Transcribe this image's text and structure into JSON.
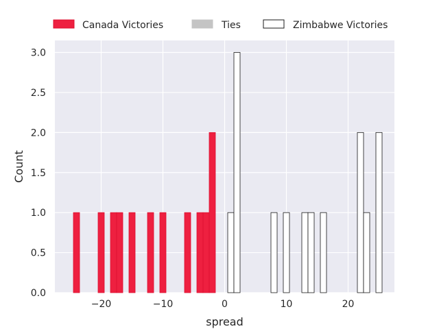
{
  "chart_data": {
    "type": "bar",
    "xlabel": "spread",
    "ylabel": "Count",
    "xlim": [
      -27.5,
      27.5
    ],
    "ylim": [
      0,
      3.15
    ],
    "bin_width": 1,
    "x_ticks": [
      -20,
      -10,
      0,
      10,
      20
    ],
    "x_tick_labels": [
      "−20",
      "−10",
      "0",
      "10",
      "20"
    ],
    "y_ticks": [
      0,
      0.5,
      1,
      1.5,
      2,
      2.5,
      3
    ],
    "y_tick_labels": [
      "0.0",
      "0.5",
      "1.0",
      "1.5",
      "2.0",
      "2.5",
      "3.0"
    ],
    "grid": true,
    "legend_position": "top",
    "series": [
      {
        "name": "Canada Victories",
        "fill": "#ee2040",
        "stroke": "#dd1030",
        "bins": [
          {
            "x": -24,
            "count": 1
          },
          {
            "x": -20,
            "count": 1
          },
          {
            "x": -18,
            "count": 1
          },
          {
            "x": -17,
            "count": 1
          },
          {
            "x": -15,
            "count": 1
          },
          {
            "x": -12,
            "count": 1
          },
          {
            "x": -10,
            "count": 1
          },
          {
            "x": -6,
            "count": 1
          },
          {
            "x": -4,
            "count": 1
          },
          {
            "x": -3,
            "count": 1
          },
          {
            "x": -2,
            "count": 2
          }
        ]
      },
      {
        "name": "Ties",
        "fill": "#c4c4c4",
        "stroke": "#c4c4c4",
        "bins": []
      },
      {
        "name": "Zimbabwe Victories",
        "fill": "#ffffff",
        "stroke": "#1a1a1a",
        "bins": [
          {
            "x": 1,
            "count": 1
          },
          {
            "x": 2,
            "count": 3
          },
          {
            "x": 8,
            "count": 1
          },
          {
            "x": 10,
            "count": 1
          },
          {
            "x": 13,
            "count": 1
          },
          {
            "x": 14,
            "count": 1
          },
          {
            "x": 16,
            "count": 1
          },
          {
            "x": 22,
            "count": 2
          },
          {
            "x": 23,
            "count": 1
          },
          {
            "x": 25,
            "count": 2
          }
        ]
      }
    ]
  },
  "colors": {
    "plot_background": "#eaeaf2",
    "grid": "#ffffff",
    "text": "#262626"
  }
}
